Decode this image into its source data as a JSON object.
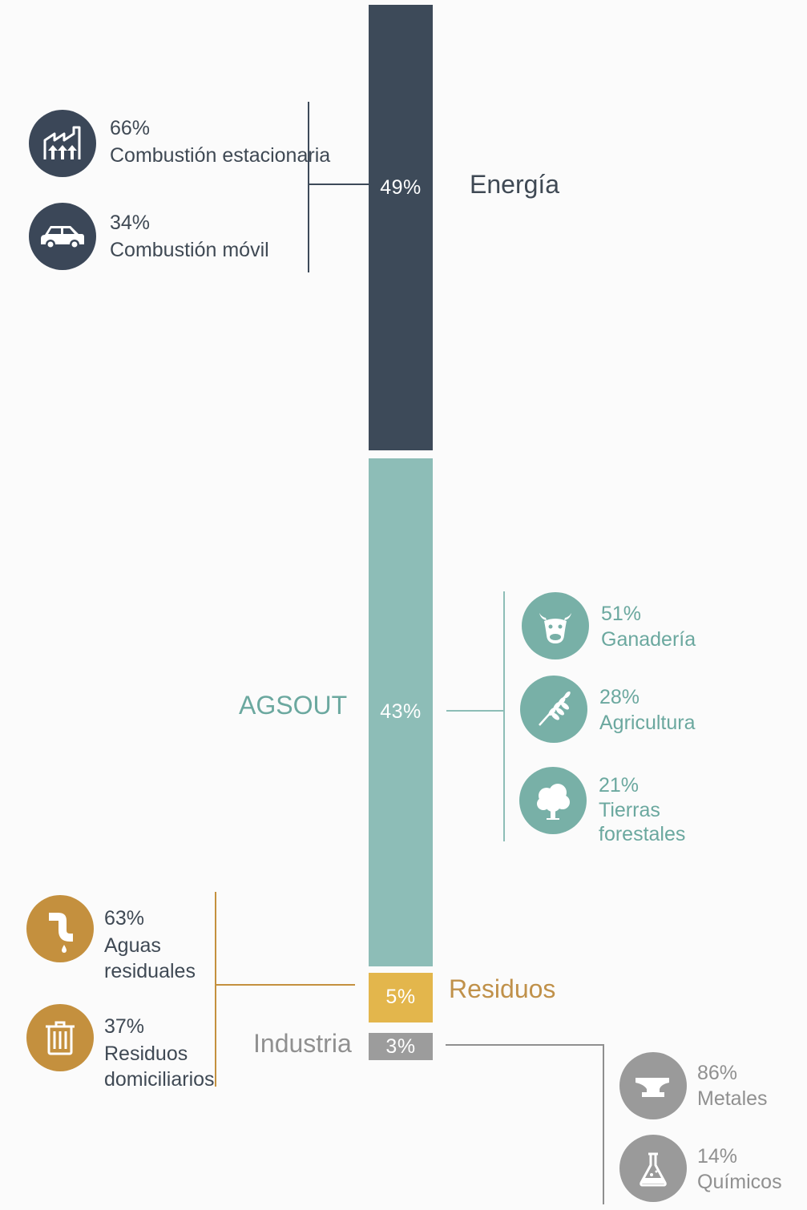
{
  "chart_data": {
    "type": "bar",
    "orientation": "stacked-vertical",
    "series": [
      {
        "name": "Energía",
        "value": 49,
        "label": "49%",
        "color": "#3d4a59",
        "breakdown": [
          {
            "pct": "66%",
            "label": "Combustión estacionaria",
            "icon": "factory-icon"
          },
          {
            "pct": "34%",
            "label": "Combustión móvil",
            "icon": "car-icon"
          }
        ]
      },
      {
        "name": "AGSOUT",
        "value": 43,
        "label": "43%",
        "color": "#8dbdb7",
        "breakdown": [
          {
            "pct": "51%",
            "label": "Ganadería",
            "icon": "cow-icon"
          },
          {
            "pct": "28%",
            "label": "Agricultura",
            "icon": "wheat-icon"
          },
          {
            "pct": "21%",
            "label": "Tierras\nforestales",
            "icon": "tree-icon"
          }
        ]
      },
      {
        "name": "Residuos",
        "value": 5,
        "label": "5%",
        "color": "#e3b64c",
        "breakdown": [
          {
            "pct": "63%",
            "label": "Aguas\nresiduales",
            "icon": "pipe-icon"
          },
          {
            "pct": "37%",
            "label": "Residuos\ndomiciliarios",
            "icon": "trash-icon"
          }
        ]
      },
      {
        "name": "Industria",
        "value": 3,
        "label": "3%",
        "color": "#9c9c9c",
        "breakdown": [
          {
            "pct": "86%",
            "label": "Metales",
            "icon": "anvil-icon"
          },
          {
            "pct": "14%",
            "label": "Químicos",
            "icon": "flask-icon"
          }
        ]
      }
    ]
  },
  "colors": {
    "energia_icon": "#3b4758",
    "agsout_text": "#6ba89f",
    "agsout_icon": "#78b0a7",
    "residuos_text": "#c0914a",
    "residuos_icon": "#c4903e",
    "industria_text": "#909090",
    "industria_icon": "#9a9a9a",
    "dark_text": "#3f4954"
  }
}
